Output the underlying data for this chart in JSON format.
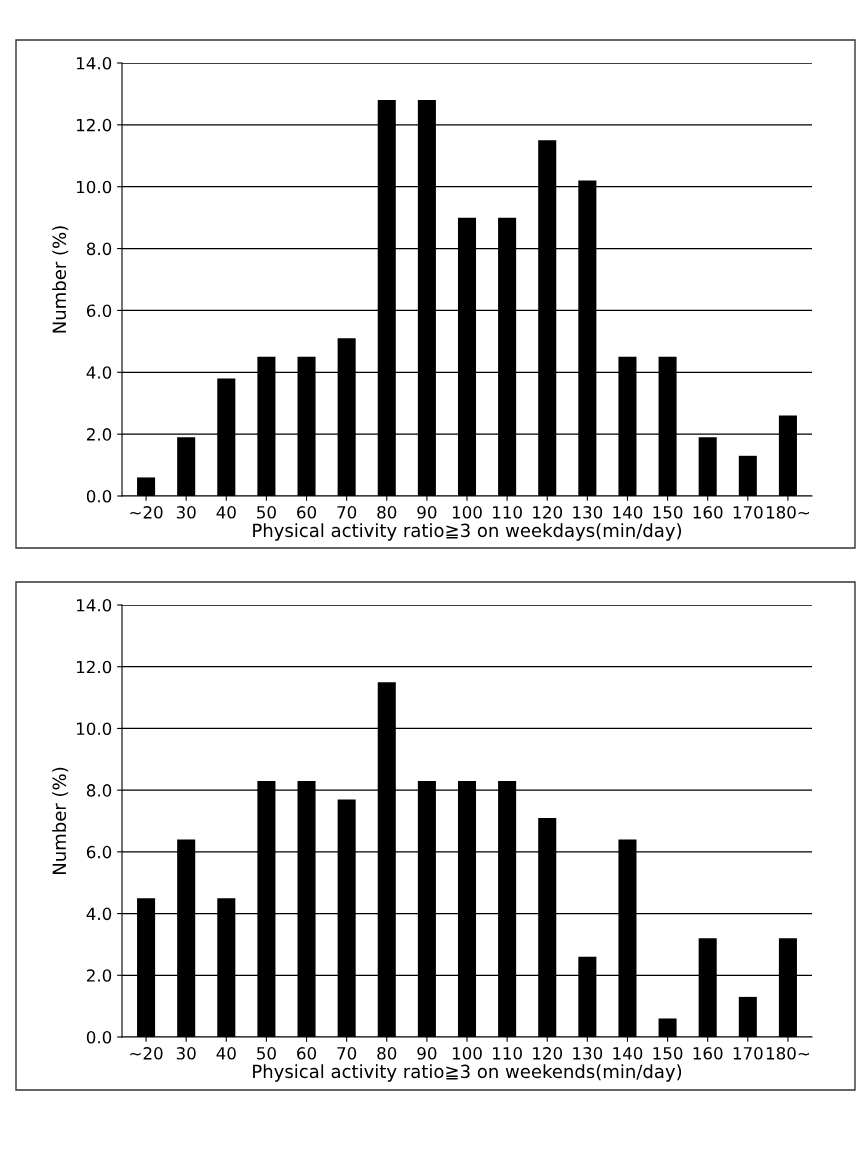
{
  "chart_data": [
    {
      "type": "bar",
      "xlabel": "Physical activity ratio≧3 on weekdays(min/day)",
      "ylabel": "Number (%)",
      "categories": [
        "∼20",
        "30",
        "40",
        "50",
        "60",
        "70",
        "80",
        "90",
        "100",
        "110",
        "120",
        "130",
        "140",
        "150",
        "160",
        "170",
        "180∼"
      ],
      "values": [
        0.6,
        1.9,
        3.8,
        4.5,
        4.5,
        5.1,
        12.8,
        12.8,
        9.0,
        9.0,
        11.5,
        10.2,
        4.5,
        4.5,
        1.9,
        1.3,
        2.6
      ],
      "color": "#000000",
      "ylim": [
        0,
        14
      ],
      "yticks": [
        {
          "value": 0,
          "label": "0.0"
        },
        {
          "value": 2,
          "label": "2.0"
        },
        {
          "value": 4,
          "label": "4.0"
        },
        {
          "value": 6,
          "label": "6.0"
        },
        {
          "value": 8,
          "label": "8.0"
        },
        {
          "value": 10,
          "label": "10.0"
        },
        {
          "value": 12,
          "label": "12.0"
        },
        {
          "value": 14,
          "label": "14.0"
        }
      ],
      "grid": "y"
    },
    {
      "type": "bar",
      "xlabel": "Physical activity ratio≧3 on weekends(min/day)",
      "ylabel": "Number (%)",
      "categories": [
        "∼20",
        "30",
        "40",
        "50",
        "60",
        "70",
        "80",
        "90",
        "100",
        "110",
        "120",
        "130",
        "140",
        "150",
        "160",
        "170",
        "180∼"
      ],
      "values": [
        4.5,
        6.4,
        4.5,
        8.3,
        8.3,
        7.7,
        11.5,
        8.3,
        8.3,
        8.3,
        7.1,
        2.6,
        6.4,
        0.6,
        3.2,
        1.3,
        3.2
      ],
      "color": "#000000",
      "ylim": [
        0,
        14
      ],
      "yticks": [
        {
          "value": 0,
          "label": "0.0"
        },
        {
          "value": 2,
          "label": "2.0"
        },
        {
          "value": 4,
          "label": "4.0"
        },
        {
          "value": 6,
          "label": "6.0"
        },
        {
          "value": 8,
          "label": "8.0"
        },
        {
          "value": 10,
          "label": "10.0"
        },
        {
          "value": 12,
          "label": "12.0"
        },
        {
          "value": 14,
          "label": "14.0"
        }
      ],
      "grid": "y"
    }
  ]
}
